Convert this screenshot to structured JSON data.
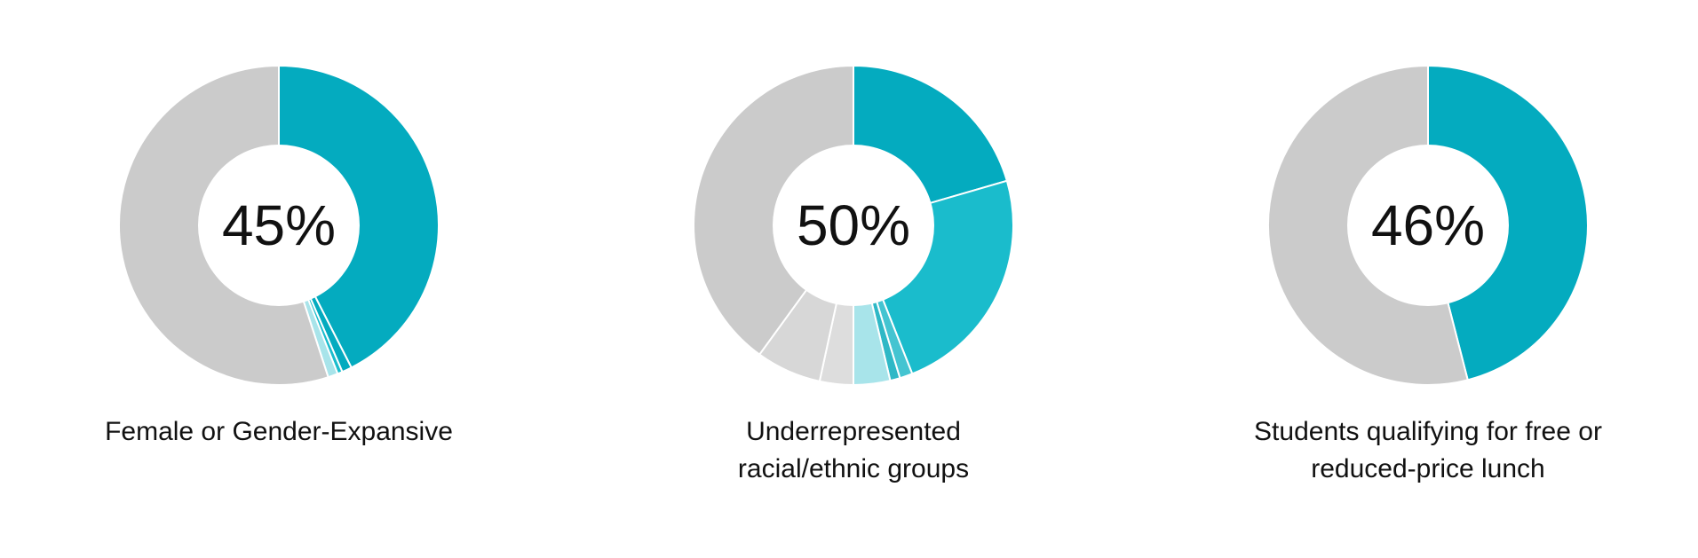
{
  "colors": {
    "accent": "#04ABBF",
    "gray": "#CBCBCB"
  },
  "chart_data": [
    {
      "type": "pie",
      "center_label": "45%",
      "caption": [
        "Female or Gender-Expansive"
      ],
      "slices": [
        {
          "value": 42.5,
          "color": "#04ABBF"
        },
        {
          "value": 1.0,
          "color": "#04ABBF"
        },
        {
          "value": 0.5,
          "color": "#1ABCCC"
        },
        {
          "value": 1.0,
          "color": "#A8E4EA"
        },
        {
          "value": 55.0,
          "color": "#CBCBCB"
        }
      ]
    },
    {
      "type": "pie",
      "center_label": "50%",
      "caption": [
        "Underrepresented",
        "racial/ethnic groups"
      ],
      "slices": [
        {
          "value": 20.5,
          "color": "#04ABBF"
        },
        {
          "value": 23.5,
          "color": "#1ABCCC"
        },
        {
          "value": 1.3,
          "color": "#44C4D1"
        },
        {
          "value": 1.0,
          "color": "#2EB8C6"
        },
        {
          "value": 3.7,
          "color": "#A8E4EA"
        },
        {
          "value": 3.4,
          "color": "#DDDDDD"
        },
        {
          "value": 6.6,
          "color": "#D7D7D7"
        },
        {
          "value": 40.0,
          "color": "#CBCBCB"
        }
      ]
    },
    {
      "type": "pie",
      "center_label": "46%",
      "caption": [
        "Students qualifying for free or",
        "reduced-price lunch"
      ],
      "slices": [
        {
          "value": 46.0,
          "color": "#04ABBF"
        },
        {
          "value": 54.0,
          "color": "#CBCBCB"
        }
      ]
    }
  ]
}
